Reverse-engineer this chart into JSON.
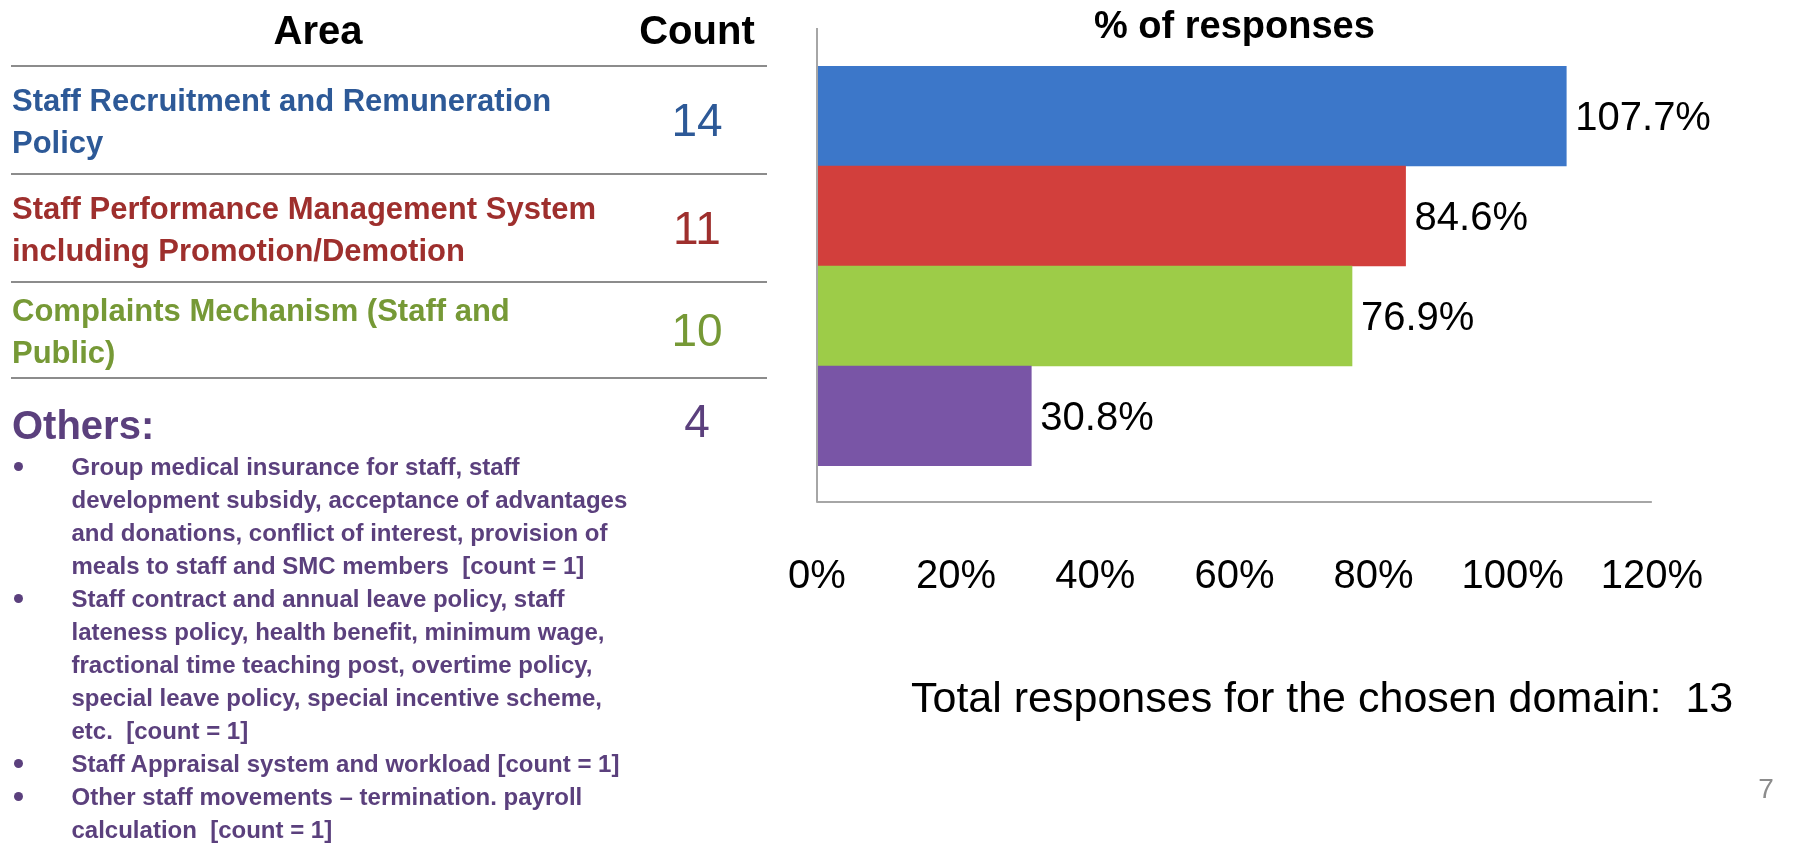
{
  "chart_data": {
    "type": "bar",
    "orientation": "horizontal",
    "title": "% of responses",
    "ylabel": "Area",
    "categories": [
      "Staff Recruitment and Remuneration Policy",
      "Staff Performance Management System including Promotion/Demotion",
      "Complaints Mechanism (Staff and Public)",
      null
    ],
    "values": [
      107.7,
      84.6,
      76.9,
      30.8
    ],
    "colors": [
      "#3c77c9",
      "#d23f3c",
      "#9dcc48",
      "#7955a6"
    ],
    "value_labels": [
      "107.7%",
      "84.6%",
      "76.9%",
      "30.8%"
    ],
    "xlim": [
      0,
      120
    ],
    "xticks": [
      {
        "value": 0,
        "label": "0%"
      },
      {
        "value": 20,
        "label": "20%"
      },
      {
        "value": 40,
        "label": "40%"
      },
      {
        "value": 60,
        "label": "60%"
      },
      {
        "value": 80,
        "label": "80%"
      },
      {
        "value": 100,
        "label": "100%"
      },
      {
        "value": 120,
        "label": "120%"
      }
    ],
    "annotations": [
      "Count",
      "14",
      "11",
      "10",
      "4",
      "Others:",
      "Group medical insurance for staff, staff development subsidy, acceptance of advantages and donations, conflict of interest, provision of meals to staff and SMC members  [count = 1]",
      "Staff contract and annual leave policy, staff lateness policy, health benefit, minimum wage, fractional time teaching post, overtime policy, special leave policy, special incentive scheme, etc.  [count = 1]",
      "Staff Appraisal system and workload [count = 1]",
      "Other staff movements – termination. payroll calculation  [count = 1]",
      "Total responses for the chosen domain:  13",
      "7"
    ]
  }
}
